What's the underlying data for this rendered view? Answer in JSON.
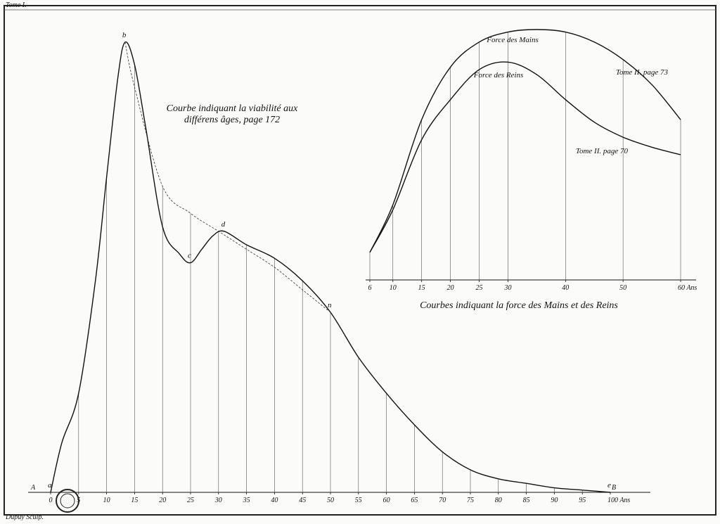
{
  "page_text": {
    "tome": "Tome I.",
    "engraver": "Dupuy Sculp."
  },
  "chart_data": [
    {
      "type": "line",
      "title": [
        "Courbe indiquant la viabilité aux",
        "différens âges, page 172"
      ],
      "axis_end_labels": [
        "A",
        "B"
      ],
      "xlim": [
        0,
        100
      ],
      "ylim": [
        0,
        100
      ],
      "xticks": [
        0,
        5,
        10,
        15,
        20,
        25,
        30,
        35,
        40,
        45,
        50,
        55,
        60,
        65,
        70,
        75,
        80,
        85,
        90,
        95,
        {
          "value": 100,
          "label": "100 Ans"
        }
      ],
      "series": [
        {
          "color": "#111111",
          "dash": false,
          "x": [
            0,
            2,
            5,
            8,
            10,
            12,
            13.3,
            15,
            17,
            20,
            23,
            25,
            27,
            29,
            31,
            35,
            40,
            45,
            50,
            55,
            60,
            65,
            70,
            75,
            80,
            85,
            90,
            95,
            100
          ],
          "values": [
            0,
            11,
            22,
            47,
            70,
            92,
            100,
            95,
            81,
            59,
            53,
            51,
            54,
            57,
            58,
            55,
            52,
            47,
            40,
            30,
            22,
            15,
            9,
            5,
            3,
            2,
            1,
            0.5,
            0
          ]
        },
        {
          "color": "#333333",
          "dash": true,
          "x": [
            13.3,
            15,
            20,
            25,
            30,
            35,
            40,
            45,
            50
          ],
          "values": [
            100,
            90,
            68,
            62,
            58,
            54,
            50,
            45,
            40
          ]
        }
      ],
      "point_labels": [
        {
          "label": "a",
          "x": 0
        },
        {
          "label": "b",
          "x": 13.3
        },
        {
          "label": "c",
          "x": 25
        },
        {
          "label": "d",
          "x": 31
        },
        {
          "label": "n",
          "x": 50
        },
        {
          "label": "e",
          "x": 100
        }
      ]
    },
    {
      "type": "line",
      "title": [
        "Courbes indiquant la force des Mains et des Reins"
      ],
      "xlim": [
        6,
        60
      ],
      "ylim": [
        0,
        100
      ],
      "xticks": [
        6,
        10,
        15,
        20,
        25,
        30,
        40,
        50,
        {
          "value": 60,
          "label": "60 Ans"
        }
      ],
      "series": [
        {
          "name": "Force des Mains",
          "color": "#111111",
          "dash": false,
          "source": "Tome II. page 73",
          "x": [
            6,
            10,
            15,
            20,
            25,
            30,
            35,
            40,
            45,
            50,
            55,
            60
          ],
          "values": [
            11,
            30,
            64,
            85,
            95,
            99,
            100,
            99,
            95,
            88,
            78,
            64
          ]
        },
        {
          "name": "Force des Reins",
          "color": "#111111",
          "dash": false,
          "source": "Tome II. page 70",
          "x": [
            6,
            10,
            15,
            20,
            25,
            30,
            35,
            40,
            45,
            50,
            55,
            60
          ],
          "values": [
            11,
            28,
            56,
            72,
            84,
            87,
            82,
            72,
            63,
            57,
            53,
            50
          ]
        }
      ]
    }
  ]
}
